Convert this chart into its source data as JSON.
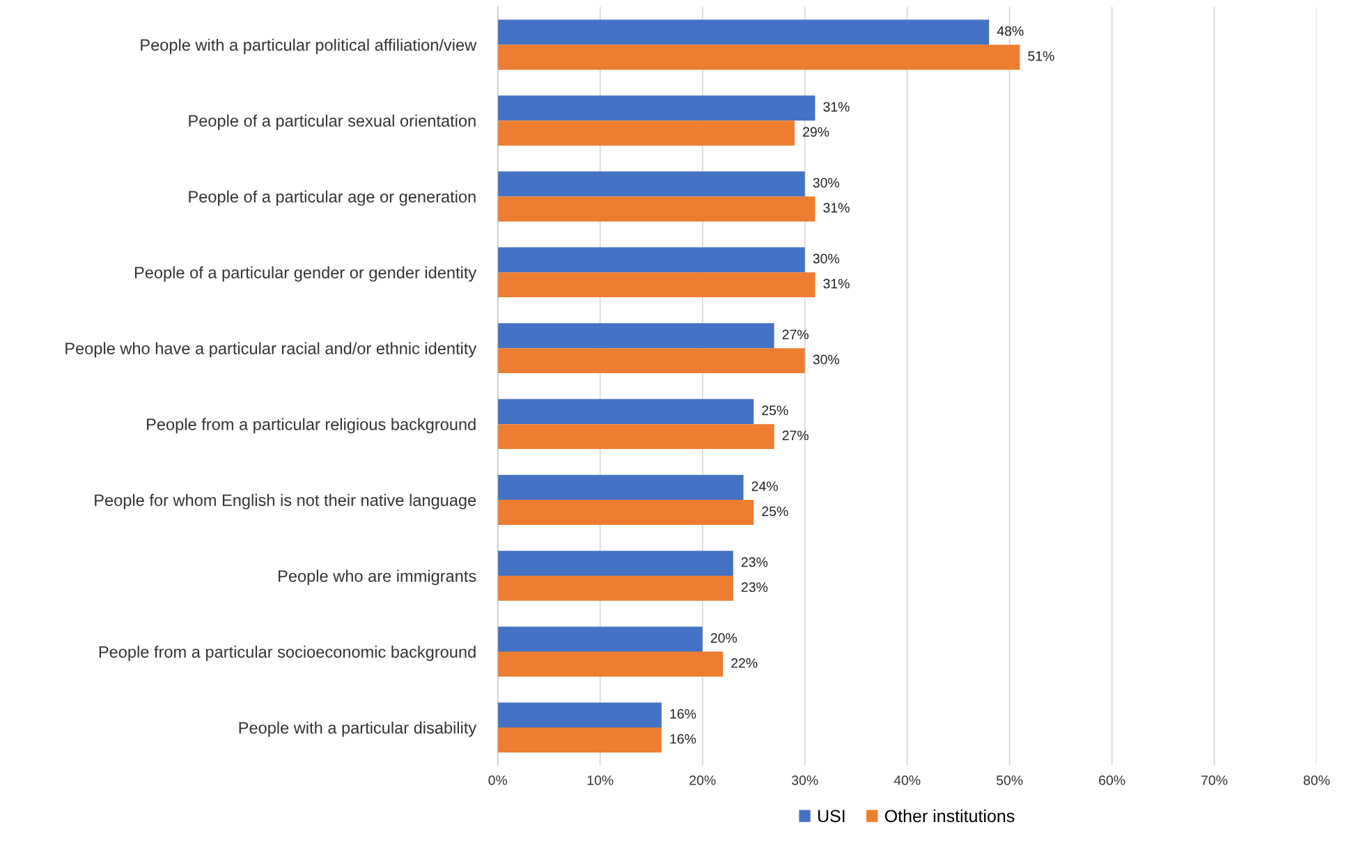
{
  "chart_data": {
    "type": "bar",
    "orientation": "horizontal",
    "categories": [
      "People with a particular political affiliation/view",
      "People of a particular sexual orientation",
      "People of a particular age or generation",
      "People of a particular gender or gender identity",
      "People who have a particular racial and/or ethnic identity",
      "People from a particular religious background",
      "People for whom English is not their native language",
      "People who are immigrants",
      "People from a particular socioeconomic background",
      "People with a particular disability"
    ],
    "series": [
      {
        "name": "USI",
        "color": "#4472c4",
        "values": [
          48,
          31,
          30,
          30,
          27,
          25,
          24,
          23,
          20,
          16
        ],
        "value_labels": [
          "48%",
          "31%",
          "30%",
          "30%",
          "27%",
          "25%",
          "24%",
          "23%",
          "20%",
          "16%"
        ]
      },
      {
        "name": "Other institutions",
        "color": "#ed7d31",
        "values": [
          51,
          29,
          31,
          31,
          30,
          27,
          25,
          23,
          22,
          16
        ],
        "value_labels": [
          "51%",
          "29%",
          "31%",
          "31%",
          "30%",
          "27%",
          "25%",
          "23%",
          "22%",
          "16%"
        ]
      }
    ],
    "xlim": [
      0,
      80
    ],
    "xticks": [
      {
        "value": 0,
        "label": "0%"
      },
      {
        "value": 10,
        "label": "10%"
      },
      {
        "value": 20,
        "label": "20%"
      },
      {
        "value": 30,
        "label": "30%"
      },
      {
        "value": 40,
        "label": "40%"
      },
      {
        "value": 50,
        "label": "50%"
      },
      {
        "value": 60,
        "label": "60%"
      },
      {
        "value": 70,
        "label": "70%"
      },
      {
        "value": 80,
        "label": "80%"
      }
    ],
    "grid": "x",
    "legend": "bottom"
  }
}
